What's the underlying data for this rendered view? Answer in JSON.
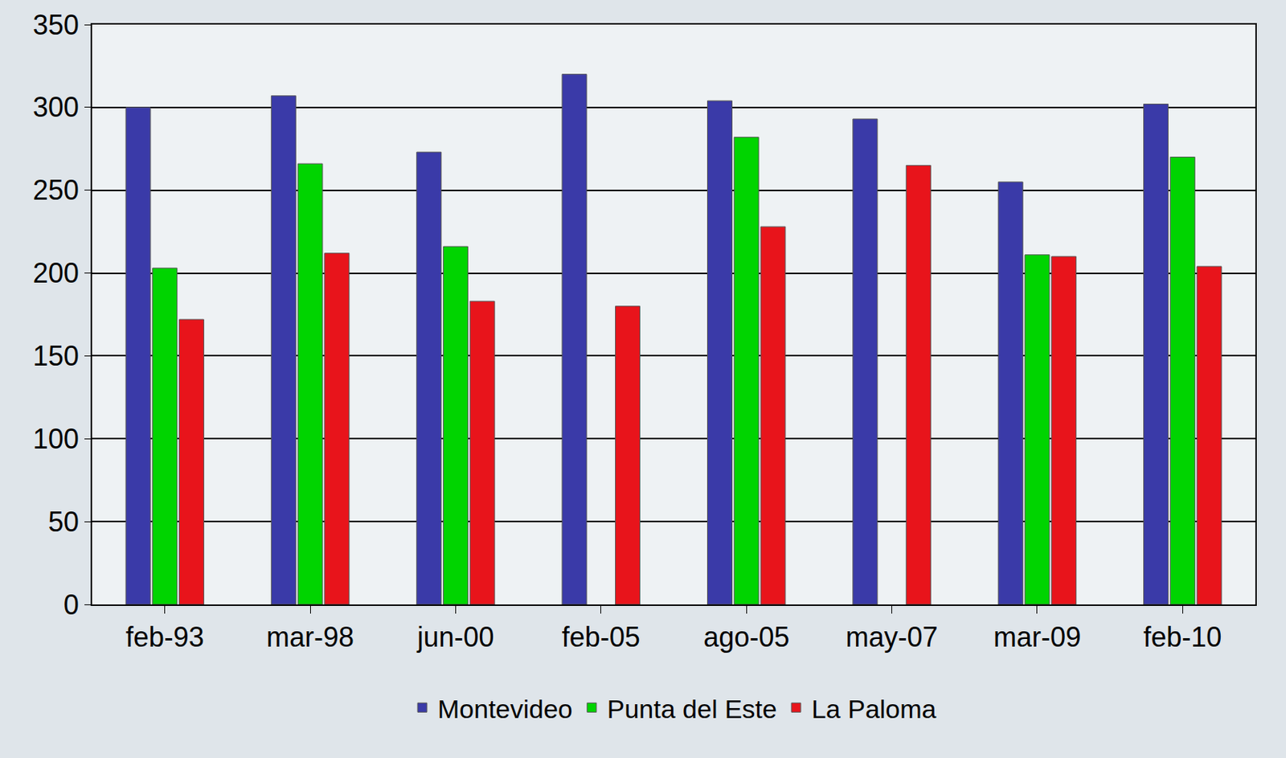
{
  "chart_data": {
    "type": "bar",
    "categories": [
      "feb-93",
      "mar-98",
      "jun-00",
      "feb-05",
      "ago-05",
      "may-07",
      "mar-09",
      "feb-10"
    ],
    "series": [
      {
        "name": "Montevideo",
        "color": "#3a3aa8",
        "values": [
          300,
          307,
          273,
          320,
          304,
          293,
          255,
          302
        ]
      },
      {
        "name": "Punta del Este",
        "color": "#00d400",
        "values": [
          203,
          266,
          216,
          null,
          282,
          null,
          211,
          270
        ]
      },
      {
        "name": "La Paloma",
        "color": "#e8141b",
        "values": [
          172,
          212,
          183,
          180,
          228,
          265,
          210,
          204
        ]
      }
    ],
    "ylim": [
      0,
      350
    ],
    "yticks": [
      0,
      50,
      100,
      150,
      200,
      250,
      300,
      350
    ],
    "grid": true,
    "legend": "bottom"
  }
}
